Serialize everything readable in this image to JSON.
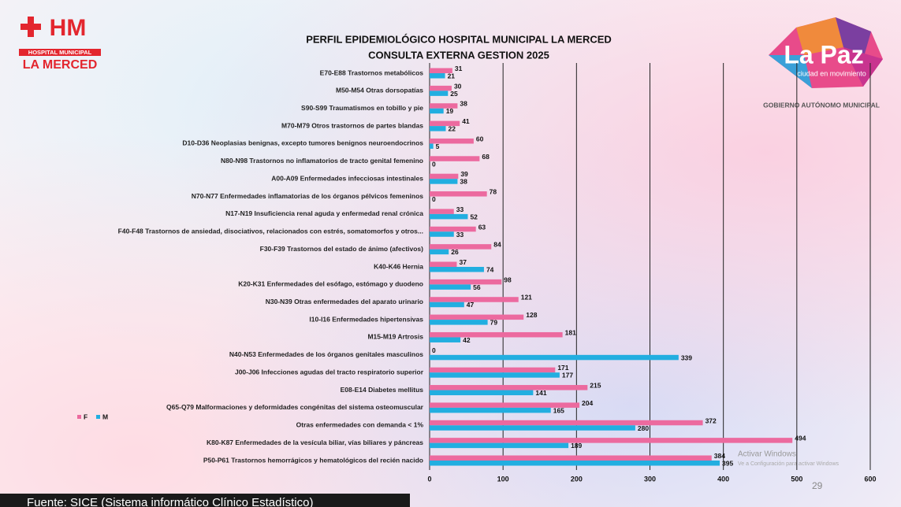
{
  "header": {
    "logo_mark": "HM",
    "logo_line1": "HOSPITAL MUNICIPAL",
    "logo_line2": "LA MERCED",
    "city_logo": "La Paz",
    "city_tagline": "ciudad en movimiento",
    "government": "GOBIERNO AUTÓNOMO MUNICIPAL"
  },
  "chart_data": {
    "type": "hbar",
    "title": "PERFIL EPIDEMIOLÓGICO HOSPITAL MUNICIPAL LA MERCED",
    "subtitle": "CONSULTA EXTERNA GESTION 2025",
    "categories": [
      "E70-E88 Trastornos metabólicos",
      "M50-M54 Otras dorsopatías",
      "S90-S99 Traumatismos en tobillo y pie",
      "M70-M79 Otros trastornos de partes blandas",
      "D10-D36 Neoplasias benignas, excepto tumores benignos neuroendocrinos",
      "N80-N98 Trastornos no inflamatorios de tracto genital femenino",
      "A00-A09 Enfermedades infecciosas intestinales",
      "N70-N77 Enfermedades inflamatorias de los órganos pélvicos femeninos",
      "N17-N19 Insuficiencia renal aguda y enfermedad renal crónica",
      "F40-F48 Trastornos de ansiedad, disociativos, relacionados con estrés, somatomorfos y otros...",
      "F30-F39 Trastornos del estado de ánimo (afectivos)",
      "K40-K46 Hernia",
      "K20-K31 Enfermedades del esófago, estómago y duodeno",
      "N30-N39 Otras enfermedades del aparato urinario",
      "I10-I16 Enfermedades hipertensivas",
      "M15-M19 Artrosis",
      "N40-N53 Enfermedades de los órganos genitales masculinos",
      "J00-J06 Infecciones agudas del tracto respiratorio superior",
      "E08-E14 Diabetes mellitus",
      "Q65-Q79 Malformaciones y deformidades congénitas del sistema osteomuscular",
      "Otras enfermedades con demanda < 1%",
      "K80-K87 Enfermedades de la vesícula biliar, vías biliares y páncreas",
      "P50-P61 Trastornos hemorrágicos y hematológicos del recién nacido"
    ],
    "series": [
      {
        "name": "F",
        "color": "#ec6a9f",
        "values": [
          31,
          30,
          38,
          41,
          60,
          68,
          39,
          78,
          33,
          63,
          84,
          37,
          98,
          121,
          128,
          181,
          0,
          171,
          215,
          204,
          372,
          494,
          384
        ]
      },
      {
        "name": "M",
        "color": "#22aee0",
        "values": [
          21,
          25,
          19,
          22,
          5,
          0,
          38,
          0,
          52,
          33,
          26,
          74,
          56,
          47,
          79,
          42,
          339,
          177,
          141,
          165,
          280,
          189,
          395
        ]
      }
    ],
    "xlim": [
      0,
      600
    ],
    "xticks": [
      0,
      100,
      200,
      300,
      400,
      500,
      600
    ],
    "grid": true,
    "legend": "left"
  },
  "page_number": "29",
  "source": "Fuente: SICE (Sistema informático Clínico Estadístico)",
  "watermark": {
    "line1": "Activar Windows",
    "line2": "Ve a Configuración para activar Windows"
  }
}
